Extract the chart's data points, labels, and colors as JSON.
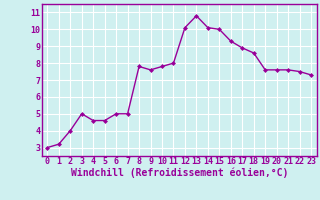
{
  "x": [
    0,
    1,
    2,
    3,
    4,
    5,
    6,
    7,
    8,
    9,
    10,
    11,
    12,
    13,
    14,
    15,
    16,
    17,
    18,
    19,
    20,
    21,
    22,
    23
  ],
  "y": [
    3.0,
    3.2,
    4.0,
    5.0,
    4.6,
    4.6,
    5.0,
    5.0,
    7.8,
    7.6,
    7.8,
    8.0,
    10.1,
    10.8,
    10.1,
    10.0,
    9.3,
    8.9,
    8.6,
    7.6,
    7.6,
    7.6,
    7.5,
    7.3
  ],
  "line_color": "#990099",
  "marker": "D",
  "marker_size": 2.0,
  "linewidth": 1.0,
  "xlim": [
    -0.5,
    23.5
  ],
  "ylim": [
    2.5,
    11.5
  ],
  "xtick_labels": [
    "0",
    "1",
    "2",
    "3",
    "4",
    "5",
    "6",
    "7",
    "8",
    "9",
    "10",
    "11",
    "12",
    "13",
    "14",
    "15",
    "16",
    "17",
    "18",
    "19",
    "20",
    "21",
    "22",
    "23"
  ],
  "ytick_labels": [
    "3",
    "4",
    "5",
    "6",
    "7",
    "8",
    "9",
    "10",
    "11"
  ],
  "ytick_values": [
    3,
    4,
    5,
    6,
    7,
    8,
    9,
    10,
    11
  ],
  "xlabel": "Windchill (Refroidissement éolien,°C)",
  "background_color": "#cff0f0",
  "grid_color": "#ffffff",
  "line_border_color": "#990099",
  "tick_color": "#990099",
  "xlabel_fontsize": 7.0,
  "tick_fontsize": 6.0
}
